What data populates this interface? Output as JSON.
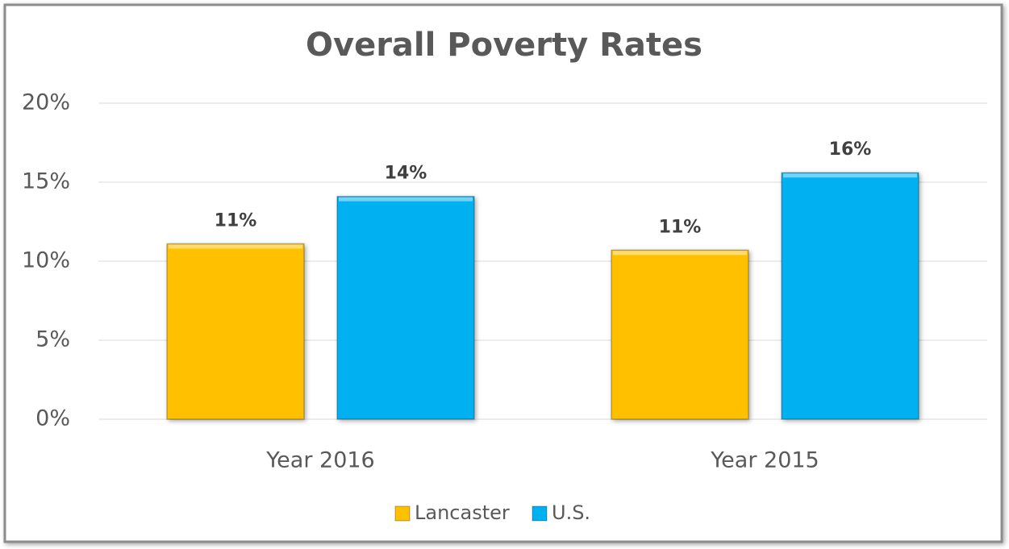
{
  "chart_data": {
    "type": "bar",
    "title": "Overall Poverty Rates",
    "categories": [
      "Year 2016",
      "Year 2015"
    ],
    "series": [
      {
        "name": "Lancaster",
        "color": "#ffc000",
        "values": [
          11.1,
          10.7
        ],
        "value_labels": [
          "11%",
          "11%"
        ]
      },
      {
        "name": "U.S.",
        "color": "#00b0f0",
        "values": [
          14.1,
          15.6
        ],
        "value_labels": [
          "14%",
          "16%"
        ]
      }
    ],
    "ylim": [
      0,
      20
    ],
    "yticks": [
      {
        "value": 0,
        "label": "0%"
      },
      {
        "value": 5,
        "label": "5%"
      },
      {
        "value": 10,
        "label": "10%"
      },
      {
        "value": 15,
        "label": "15%"
      },
      {
        "value": 20,
        "label": "20%"
      }
    ],
    "grid": true,
    "legend": "bottom"
  }
}
